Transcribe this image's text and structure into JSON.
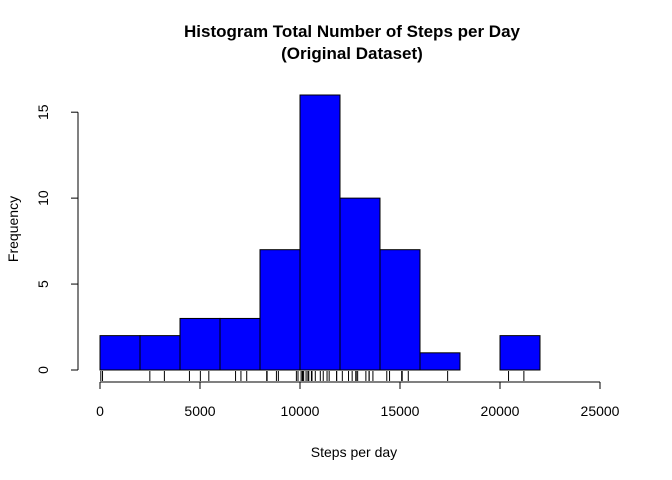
{
  "chart_data": {
    "type": "bar",
    "title_line1": "Histogram Total Number of Steps per Day",
    "title_line2": "(Original Dataset)",
    "xlabel": "Steps per day",
    "ylabel": "Frequency",
    "xlim": [
      0,
      25000
    ],
    "ylim": [
      0,
      16
    ],
    "x_ticks": [
      0,
      5000,
      10000,
      15000,
      20000,
      25000
    ],
    "y_ticks": [
      0,
      5,
      10,
      15
    ],
    "bin_width": 2000,
    "bins": [
      {
        "start": 0,
        "end": 2000,
        "count": 2
      },
      {
        "start": 2000,
        "end": 4000,
        "count": 2
      },
      {
        "start": 4000,
        "end": 6000,
        "count": 3
      },
      {
        "start": 6000,
        "end": 8000,
        "count": 3
      },
      {
        "start": 8000,
        "end": 10000,
        "count": 7
      },
      {
        "start": 10000,
        "end": 12000,
        "count": 16
      },
      {
        "start": 12000,
        "end": 14000,
        "count": 10
      },
      {
        "start": 14000,
        "end": 16000,
        "count": 7
      },
      {
        "start": 16000,
        "end": 18000,
        "count": 1
      },
      {
        "start": 18000,
        "end": 20000,
        "count": 0
      },
      {
        "start": 20000,
        "end": 22000,
        "count": 2
      }
    ],
    "rug": [
      41,
      126,
      2492,
      3219,
      4472,
      5018,
      5441,
      6778,
      7047,
      7336,
      8334,
      8355,
      8821,
      8918,
      9819,
      9900,
      10056,
      10119,
      10139,
      10183,
      10304,
      10395,
      10439,
      10571,
      10600,
      10765,
      11015,
      11162,
      11352,
      11458,
      11829,
      11834,
      12116,
      12426,
      12608,
      12787,
      12811,
      12883,
      13294,
      13452,
      13460,
      13646,
      14339,
      14478,
      15084,
      15098,
      15110,
      15414,
      17382,
      20427,
      21194
    ],
    "bar_color": "#0000FF",
    "bar_edge_color": "#000000",
    "grid": false,
    "legend": "none"
  }
}
